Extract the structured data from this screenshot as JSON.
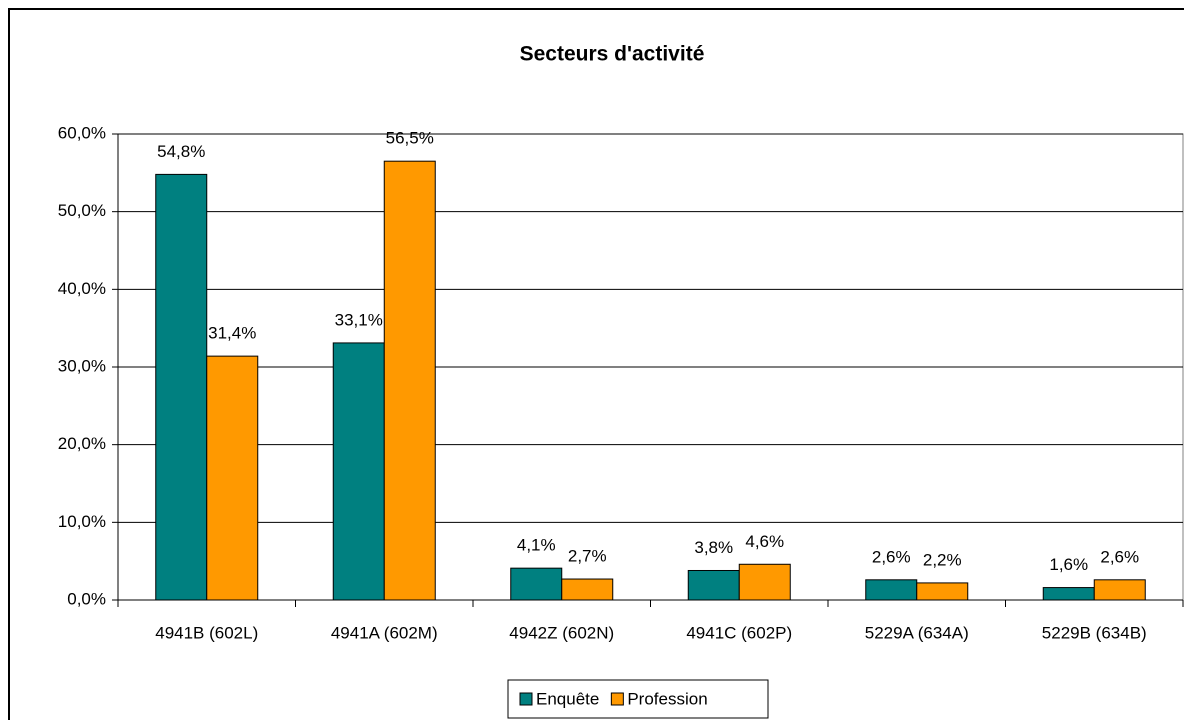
{
  "chart_data": {
    "type": "bar",
    "title": "Secteurs d'activité",
    "categories": [
      "4941B (602L)",
      "4941A (602M)",
      "4942Z (602N)",
      "4941C (602P)",
      "5229A (634A)",
      "5229B (634B)"
    ],
    "series": [
      {
        "name": "Enquête",
        "color": "#008080",
        "values": [
          54.8,
          33.1,
          4.1,
          3.8,
          2.6,
          1.6
        ],
        "value_labels": [
          "54,8%",
          "33,1%",
          "4,1%",
          "3,8%",
          "2,6%",
          "1,6%"
        ]
      },
      {
        "name": "Profession",
        "color": "#ff9900",
        "values": [
          31.4,
          56.5,
          2.7,
          4.6,
          2.2,
          2.6
        ],
        "value_labels": [
          "31,4%",
          "56,5%",
          "2,7%",
          "4,6%",
          "2,2%",
          "2,6%"
        ]
      }
    ],
    "ylim": [
      0,
      60
    ],
    "yticks": [
      {
        "value": 0,
        "label": "0,0%"
      },
      {
        "value": 10,
        "label": "10,0%"
      },
      {
        "value": 20,
        "label": "20,0%"
      },
      {
        "value": 30,
        "label": "30,0%"
      },
      {
        "value": 40,
        "label": "40,0%"
      },
      {
        "value": 50,
        "label": "50,0%"
      },
      {
        "value": 60,
        "label": "60,0%"
      }
    ],
    "grid": true,
    "legend": "bottom"
  }
}
